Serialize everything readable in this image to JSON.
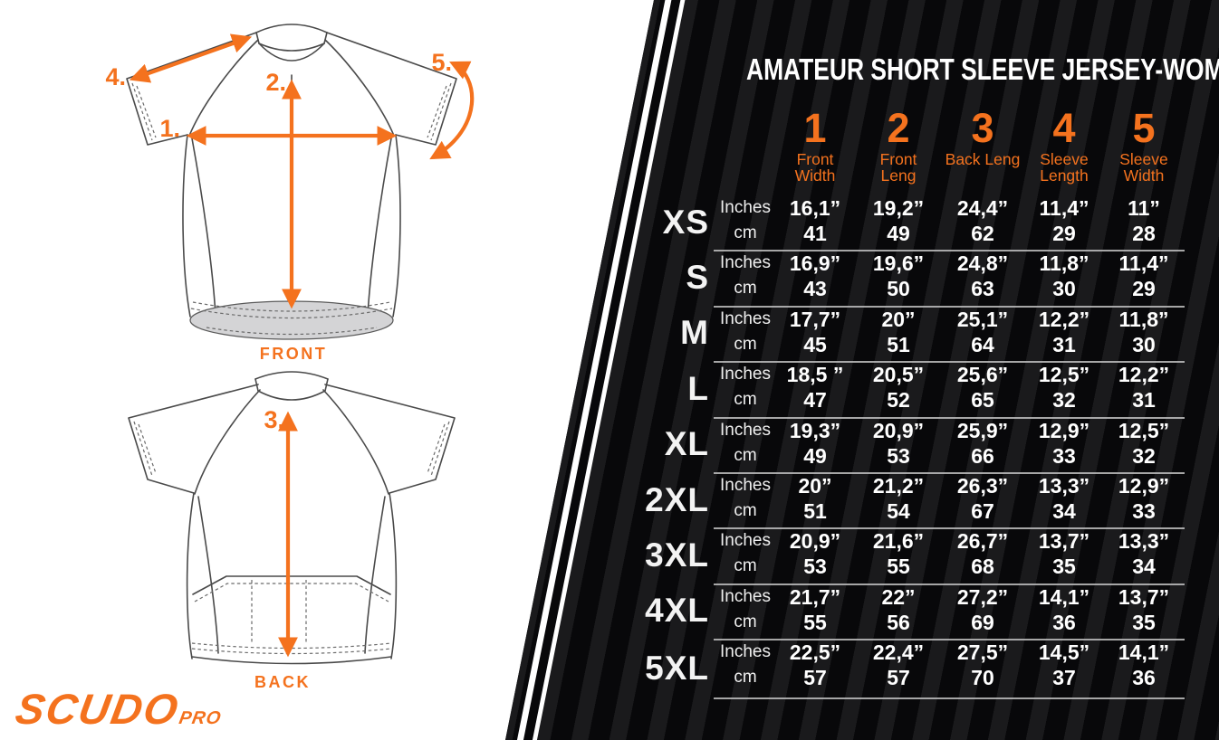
{
  "brand": {
    "name": "SCUDO",
    "suffix": "PRO"
  },
  "diagram": {
    "front_caption": "FRONT",
    "back_caption": "BACK",
    "markers": {
      "m1": "1.",
      "m2": "2.",
      "m3": "3.",
      "m4": "4.",
      "m5": "5."
    }
  },
  "panel": {
    "title": "AMATEUR SHORT SLEEVE JERSEY-WOMAN",
    "units": [
      "Inches",
      "cm"
    ],
    "columns": [
      {
        "num": "1",
        "label": "Front Width"
      },
      {
        "num": "2",
        "label": "Front Leng"
      },
      {
        "num": "3",
        "label": "Back Leng"
      },
      {
        "num": "4",
        "label": "Sleeve Length"
      },
      {
        "num": "5",
        "label": "Sleeve Width"
      }
    ],
    "rows": [
      {
        "size": "XS",
        "inches": [
          "16,1”",
          "19,2”",
          "24,4”",
          "11,4”",
          "11”"
        ],
        "cm": [
          "41",
          "49",
          "62",
          "29",
          "28"
        ]
      },
      {
        "size": "S",
        "inches": [
          "16,9”",
          "19,6”",
          "24,8”",
          "11,8”",
          "11,4”"
        ],
        "cm": [
          "43",
          "50",
          "63",
          "30",
          "29"
        ]
      },
      {
        "size": "M",
        "inches": [
          "17,7”",
          "20”",
          "25,1”",
          "12,2”",
          "11,8”"
        ],
        "cm": [
          "45",
          "51",
          "64",
          "31",
          "30"
        ]
      },
      {
        "size": "L",
        "inches": [
          "18,5 ”",
          "20,5”",
          "25,6”",
          "12,5”",
          "12,2”"
        ],
        "cm": [
          "47",
          "52",
          "65",
          "32",
          "31"
        ]
      },
      {
        "size": "XL",
        "inches": [
          "19,3”",
          "20,9”",
          "25,9”",
          "12,9”",
          "12,5”"
        ],
        "cm": [
          "49",
          "53",
          "66",
          "33",
          "32"
        ]
      },
      {
        "size": "2XL",
        "inches": [
          "20”",
          "21,2”",
          "26,3”",
          "13,3”",
          "12,9”"
        ],
        "cm": [
          "51",
          "54",
          "67",
          "34",
          "33"
        ]
      },
      {
        "size": "3XL",
        "inches": [
          "20,9”",
          "21,6”",
          "26,7”",
          "13,7”",
          "13,3”"
        ],
        "cm": [
          "53",
          "55",
          "68",
          "35",
          "34"
        ]
      },
      {
        "size": "4XL",
        "inches": [
          "21,7”",
          "22”",
          "27,2”",
          "14,1”",
          "13,7”"
        ],
        "cm": [
          "55",
          "56",
          "69",
          "36",
          "35"
        ]
      },
      {
        "size": "5XL",
        "inches": [
          "22,5”",
          "22,4”",
          "27,5”",
          "14,5”",
          "14,1”"
        ],
        "cm": [
          "57",
          "57",
          "70",
          "37",
          "36"
        ]
      }
    ]
  },
  "colors": {
    "accent": "#f4721e",
    "panel_bg": "#08080a",
    "stripe": "#1a1a1c",
    "separator": "#c2c2c2"
  }
}
